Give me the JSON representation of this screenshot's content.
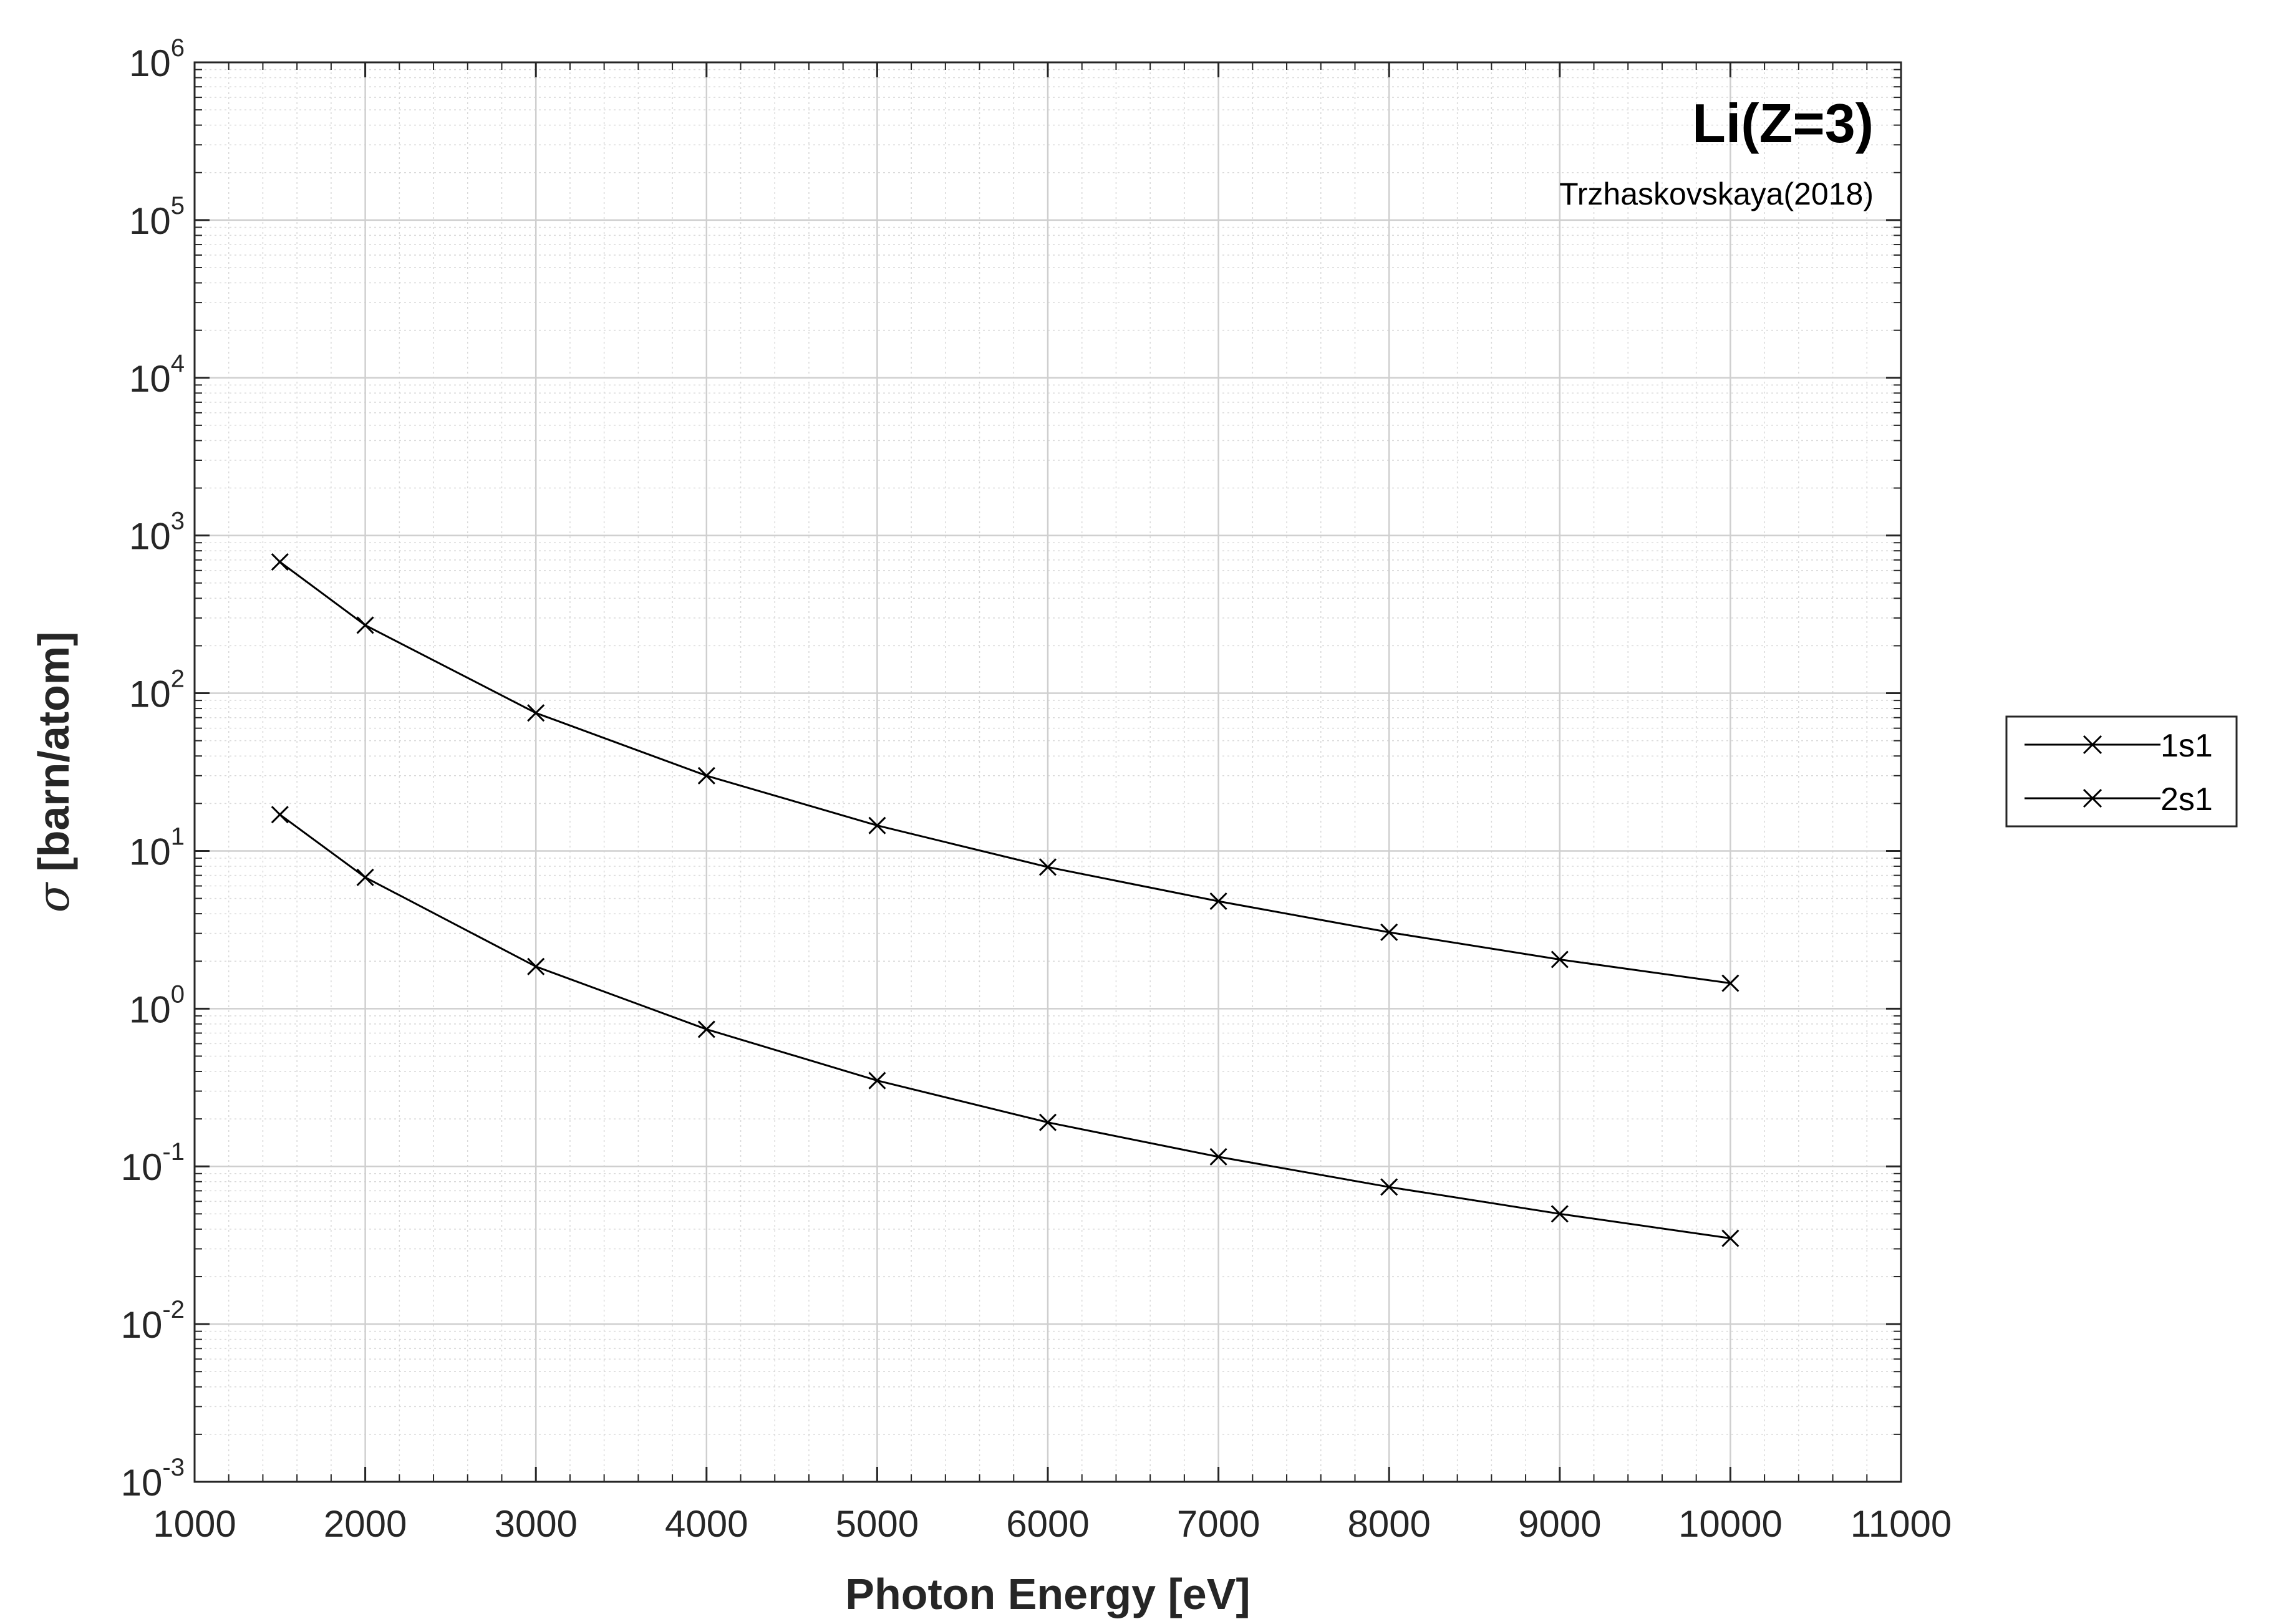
{
  "chart_data": {
    "type": "line",
    "title": "Li(Z=3)",
    "subtitle": "Trzhaskovskaya(2018)",
    "xlabel": "Photon Energy [eV]",
    "ylabel_symbol": "σ",
    "ylabel_text": "[barn/atom]",
    "xlim": [
      1000,
      11000
    ],
    "ylim": [
      0.001,
      1000000
    ],
    "yscale": "log",
    "grid": "on",
    "legend_position": "outside-right",
    "x_ticks": [
      "1000",
      "2000",
      "3000",
      "4000",
      "5000",
      "6000",
      "7000",
      "8000",
      "9000",
      "10000",
      "11000"
    ],
    "y_ticks": [
      {
        "base": "10",
        "exp": "-3"
      },
      {
        "base": "10",
        "exp": "-2"
      },
      {
        "base": "10",
        "exp": "-1"
      },
      {
        "base": "10",
        "exp": "0"
      },
      {
        "base": "10",
        "exp": "1"
      },
      {
        "base": "10",
        "exp": "2"
      },
      {
        "base": "10",
        "exp": "3"
      },
      {
        "base": "10",
        "exp": "4"
      },
      {
        "base": "10",
        "exp": "5"
      },
      {
        "base": "10",
        "exp": "6"
      }
    ],
    "x": [
      1500,
      2000,
      3000,
      4000,
      5000,
      6000,
      7000,
      8000,
      9000,
      10000
    ],
    "series": [
      {
        "name": "1s1",
        "marker": "x",
        "color": "#000000",
        "values": [
          680,
          270,
          75,
          30,
          14.5,
          7.9,
          4.8,
          3.05,
          2.05,
          1.45
        ]
      },
      {
        "name": "2s1",
        "marker": "x",
        "color": "#000000",
        "values": [
          17,
          6.8,
          1.85,
          0.74,
          0.35,
          0.19,
          0.115,
          0.074,
          0.05,
          0.035
        ]
      }
    ]
  }
}
